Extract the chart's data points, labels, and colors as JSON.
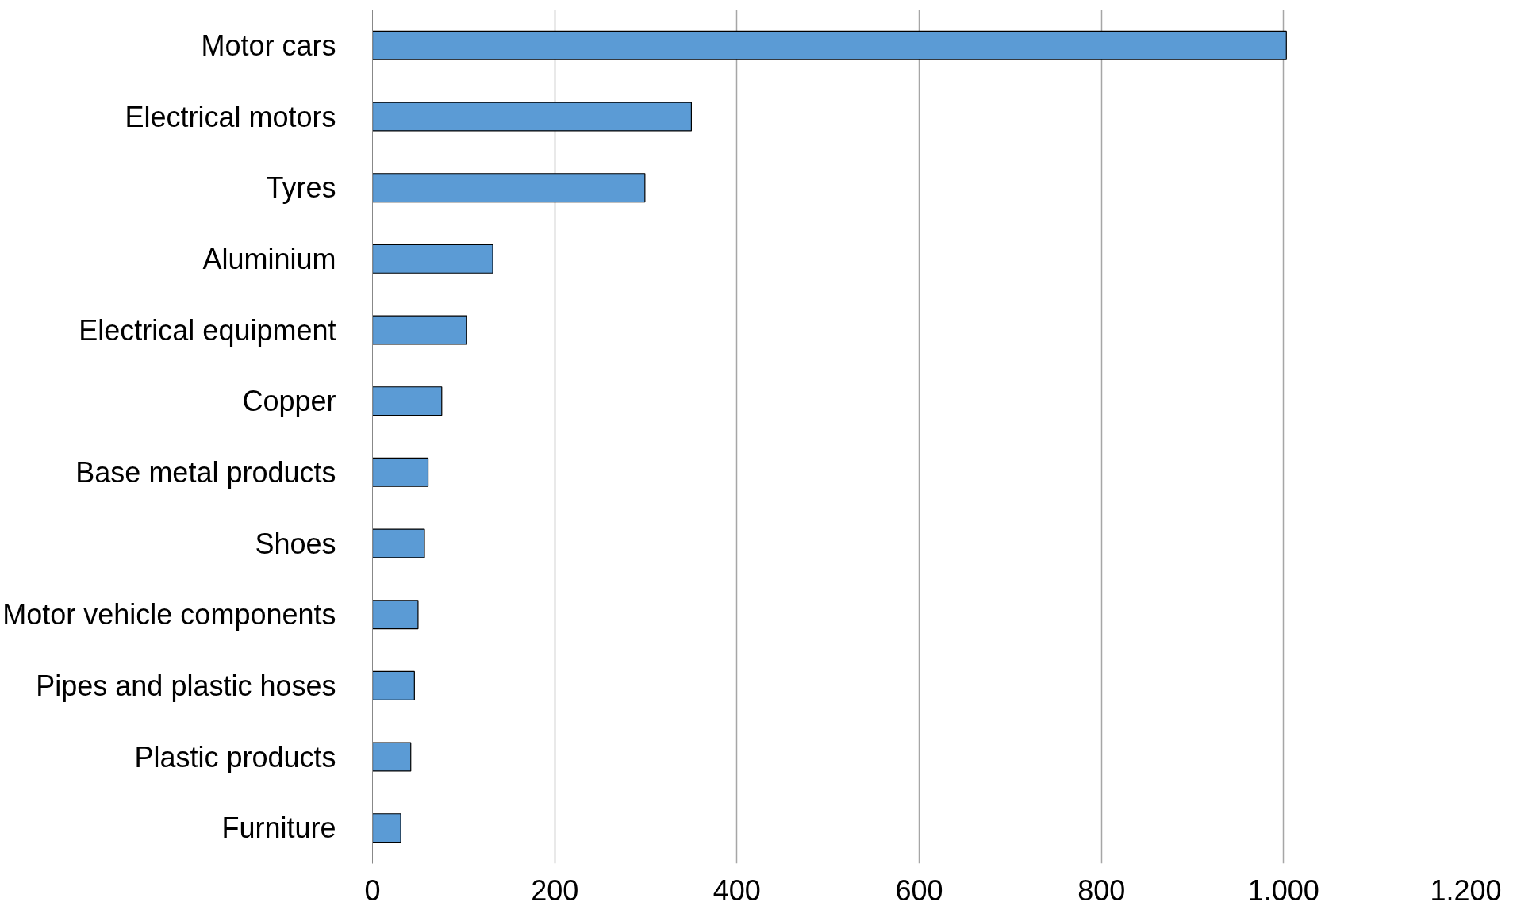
{
  "chart_data": {
    "type": "bar",
    "orientation": "horizontal",
    "categories": [
      "Motor cars",
      "Electrical motors",
      "Tyres",
      "Aluminium",
      "Electrical equipment",
      "Copper",
      "Base metal products",
      "Shoes",
      "Motor vehicle components",
      "Pipes and plastic hoses",
      "Plastic products",
      "Furniture"
    ],
    "values": [
      1003,
      350,
      299,
      132,
      103,
      76,
      61,
      57,
      50,
      46,
      42,
      31
    ],
    "color": "#5b9bd5",
    "xlim": [
      0,
      1200
    ],
    "xticks": [
      0,
      200,
      400,
      600,
      800,
      {
        "value": 1000,
        "label": "1.000"
      },
      {
        "value": 1200,
        "label": "1.200"
      }
    ],
    "grid": "x"
  }
}
